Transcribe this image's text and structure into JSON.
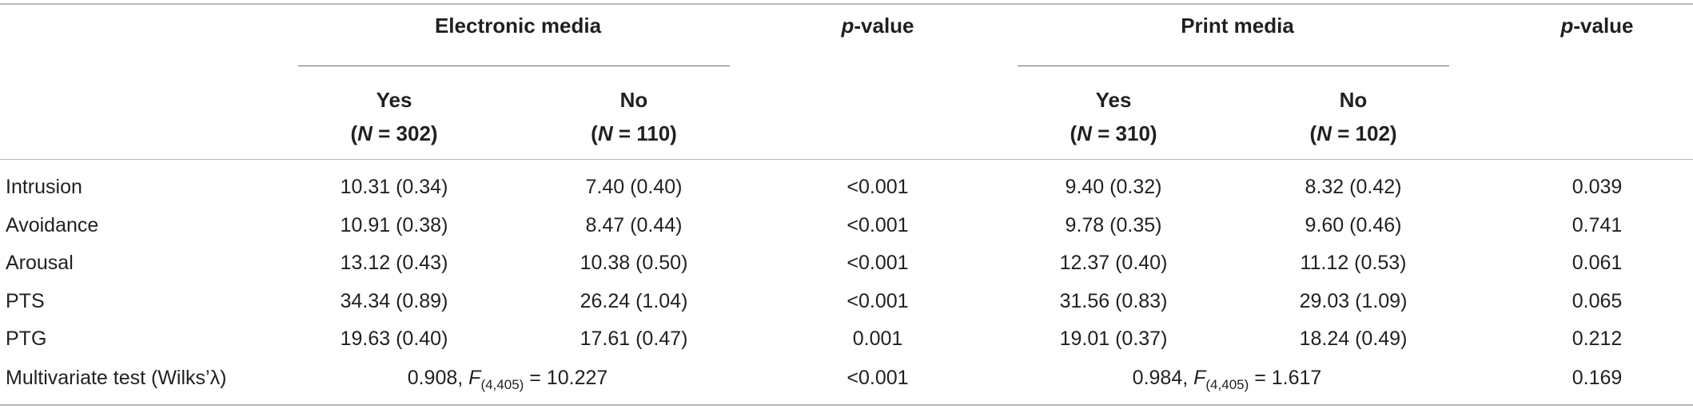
{
  "header": {
    "electronic_media": "Electronic media",
    "print_media": "Print media",
    "p_value_prefix": "p",
    "p_value_suffix": "-value",
    "yes": "Yes",
    "no": "No",
    "n_label": "N",
    "n_el_yes": " = 302)",
    "n_el_no": " = 110)",
    "n_pm_yes": " = 310)",
    "n_pm_no": " = 102)",
    "open_paren": "("
  },
  "rows": [
    {
      "label": "Intrusion",
      "el_yes": "10.31 (0.34)",
      "el_no": "7.40 (0.40)",
      "el_p": "<0.001",
      "pm_yes": "9.40 (0.32)",
      "pm_no": "8.32 (0.42)",
      "pm_p": "0.039"
    },
    {
      "label": "Avoidance",
      "el_yes": "10.91 (0.38)",
      "el_no": "8.47 (0.44)",
      "el_p": "<0.001",
      "pm_yes": "9.78 (0.35)",
      "pm_no": "9.60 (0.46)",
      "pm_p": "0.741"
    },
    {
      "label": "Arousal",
      "el_yes": "13.12 (0.43)",
      "el_no": "10.38 (0.50)",
      "el_p": "<0.001",
      "pm_yes": "12.37 (0.40)",
      "pm_no": "11.12 (0.53)",
      "pm_p": "0.061"
    },
    {
      "label": "PTS",
      "el_yes": "34.34 (0.89)",
      "el_no": "26.24 (1.04)",
      "el_p": "<0.001",
      "pm_yes": "31.56 (0.83)",
      "pm_no": "29.03 (1.09)",
      "pm_p": "0.065"
    },
    {
      "label": "PTG",
      "el_yes": "19.63 (0.40)",
      "el_no": "17.61 (0.47)",
      "el_p": "0.001",
      "pm_yes": "19.01 (0.37)",
      "pm_no": "18.24 (0.49)",
      "pm_p": "0.212"
    }
  ],
  "multivariate": {
    "label": "Multivariate test (Wilks’λ)",
    "el_value": "0.908, ",
    "el_f": "F",
    "el_df": "(4,405)",
    "el_stat": " = 10.227",
    "el_p": "<0.001",
    "pm_value": "0.984, ",
    "pm_f": "F",
    "pm_df": "(4,405)",
    "pm_stat": " = 1.617",
    "pm_p": "0.169"
  }
}
